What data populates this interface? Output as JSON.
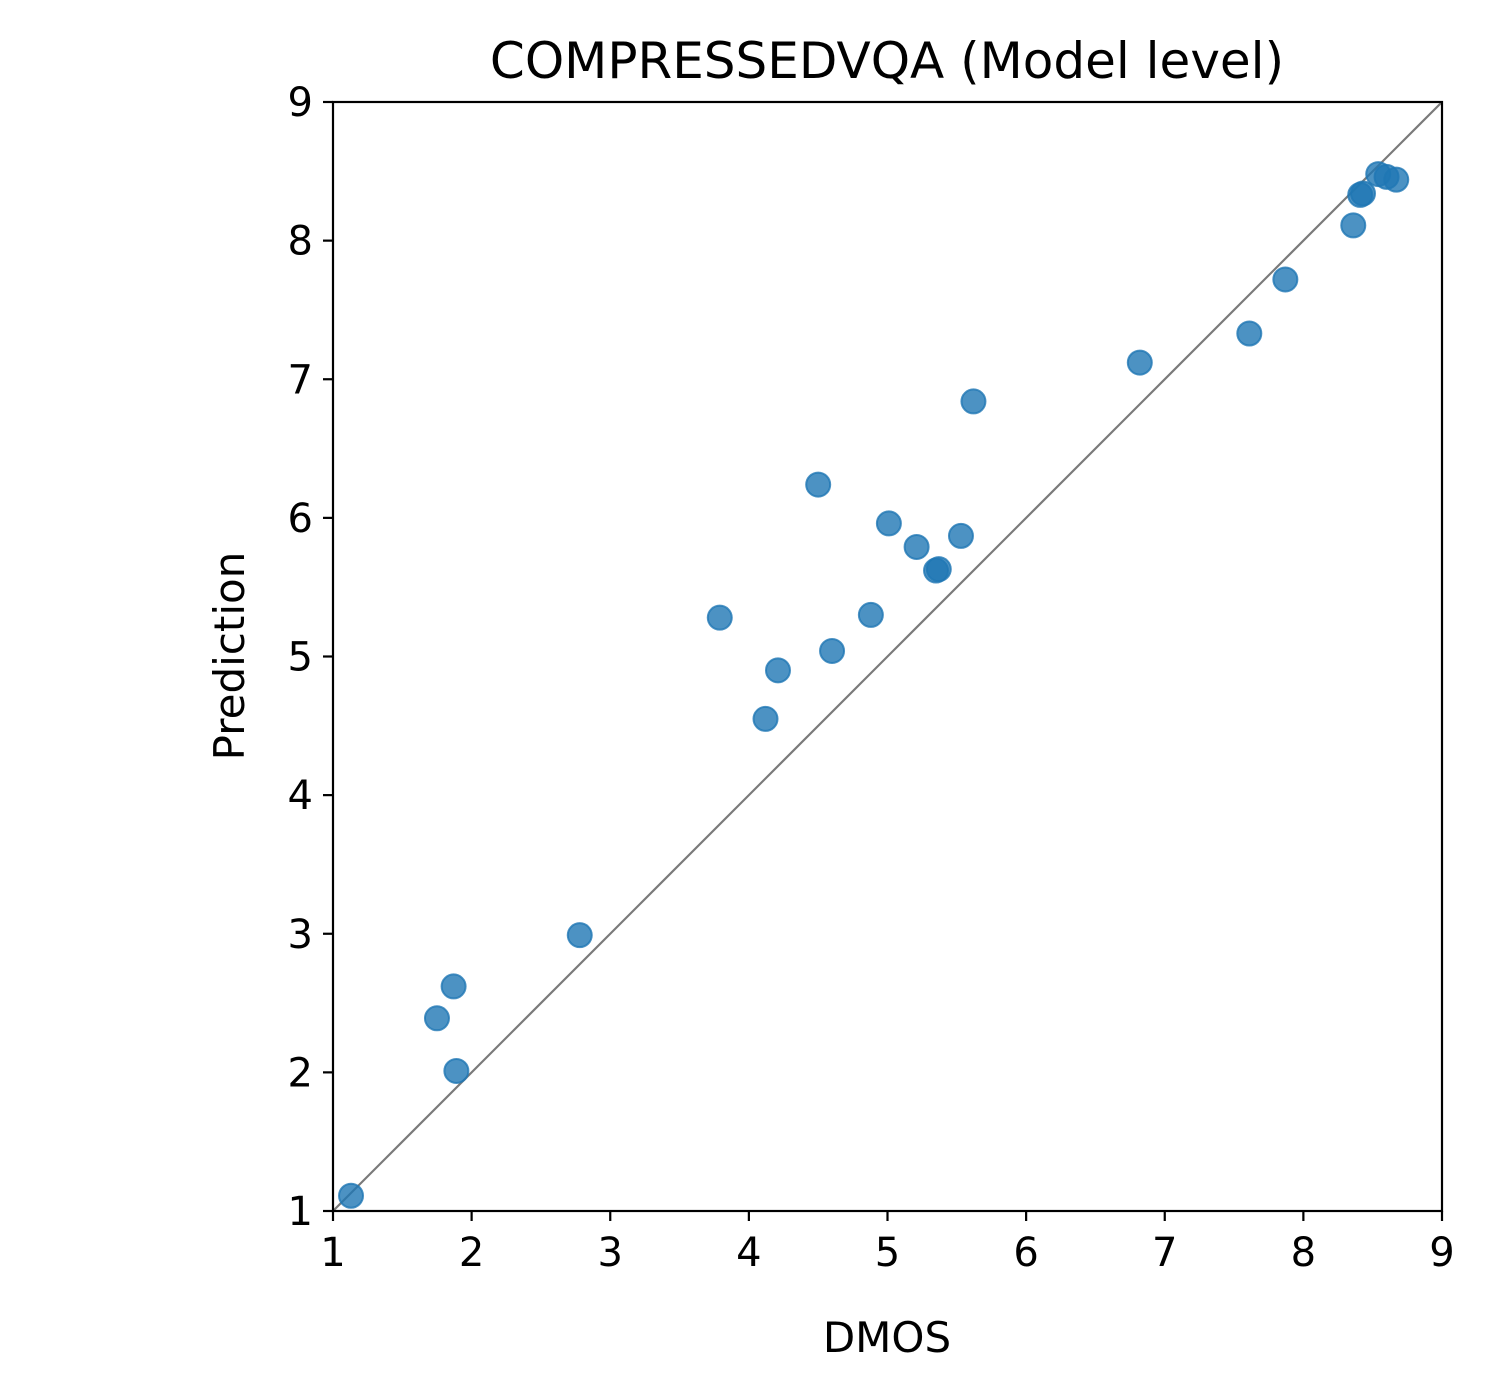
{
  "chart_data": {
    "type": "scatter",
    "title": "COMPRESSEDVQA (Model level)",
    "xlabel": "DMOS",
    "ylabel": "Prediction",
    "xlim": [
      1,
      9
    ],
    "ylim": [
      1,
      9
    ],
    "xticks": [
      "1",
      "2",
      "3",
      "4",
      "5",
      "6",
      "7",
      "8",
      "9"
    ],
    "yticks": [
      "1",
      "2",
      "3",
      "4",
      "5",
      "6",
      "7",
      "8",
      "9"
    ],
    "grid": false,
    "reference_line": {
      "from": [
        1,
        1
      ],
      "to": [
        9,
        9
      ],
      "color": "#7a7a7a"
    },
    "marker_color": "#1f77b4",
    "marker_alpha": 0.8,
    "series": [
      {
        "name": "models",
        "points": [
          [
            1.13,
            1.11
          ],
          [
            1.75,
            2.39
          ],
          [
            1.87,
            2.62
          ],
          [
            1.89,
            2.01
          ],
          [
            2.78,
            2.99
          ],
          [
            3.79,
            5.28
          ],
          [
            4.12,
            4.55
          ],
          [
            4.21,
            4.9
          ],
          [
            4.5,
            6.24
          ],
          [
            4.6,
            5.04
          ],
          [
            4.88,
            5.3
          ],
          [
            5.01,
            5.96
          ],
          [
            5.21,
            5.79
          ],
          [
            5.35,
            5.62
          ],
          [
            5.37,
            5.63
          ],
          [
            5.53,
            5.87
          ],
          [
            5.62,
            6.84
          ],
          [
            6.82,
            7.12
          ],
          [
            7.61,
            7.33
          ],
          [
            7.87,
            7.72
          ],
          [
            8.36,
            8.11
          ],
          [
            8.41,
            8.33
          ],
          [
            8.43,
            8.34
          ],
          [
            8.54,
            8.48
          ],
          [
            8.6,
            8.46
          ],
          [
            8.67,
            8.44
          ]
        ]
      }
    ]
  }
}
